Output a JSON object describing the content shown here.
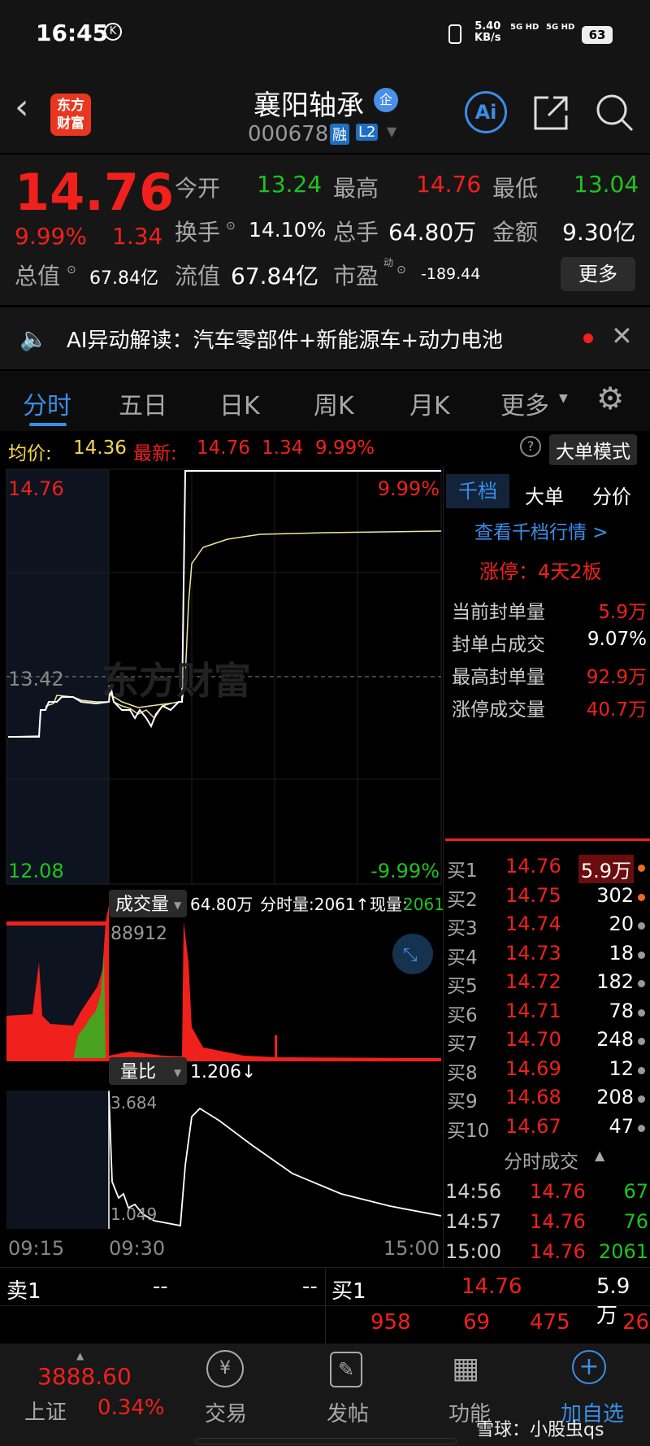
{
  "status_bar": {
    "time": "16:45",
    "speed": "5.40",
    "speed_unit": "KB/s",
    "net1": "5G HD",
    "net2": "5G HD",
    "battery": "63"
  },
  "header": {
    "logo_line1": "东方",
    "logo_line2": "财富",
    "stock_name": "襄阳轴承",
    "badge": "企",
    "code": "000678",
    "tag_margin": "融",
    "tag_level": "L2",
    "ai_label": "Ai"
  },
  "quote": {
    "price": "14.76",
    "change_pct": "9.99%",
    "change": "1.34",
    "open_label": "今开",
    "open": "13.24",
    "high_label": "最高",
    "high": "14.76",
    "low_label": "最低",
    "low": "13.04",
    "turnover_label": "换手",
    "turnover": "14.10%",
    "volume_label": "总手",
    "volume": "64.80万",
    "amount_label": "金额",
    "amount": "9.30亿",
    "mktcap_label": "总值",
    "mktcap": "67.84亿",
    "float_label": "流值",
    "float": "67.84亿",
    "pe_label": "市盈",
    "pe_sup": "动",
    "pe": "-189.44",
    "more": "更多"
  },
  "ai_bar": {
    "text": "AI异动解读：汽车零部件+新能源车+动力电池"
  },
  "tabs": [
    "分时",
    "五日",
    "日K",
    "周K",
    "月K",
    "更多"
  ],
  "info_line": {
    "avg_label": "均价:",
    "avg": "14.36",
    "latest_label": "最新:",
    "latest": "14.76",
    "chg": "1.34",
    "pct": "9.99%",
    "mode_button": "大单模式"
  },
  "chart": {
    "price_high": "14.76",
    "price_mid": "13.42",
    "price_low": "12.08",
    "pct_high": "9.99%",
    "pct_low": "-9.99%",
    "watermark": "东方财富",
    "vol_selector": "成交量",
    "vol_total": "64.80万",
    "vol_minute": "分时量:2061↑",
    "vol_now_label": "现量:",
    "vol_now": "2061",
    "vol_max": "88912",
    "ratio_selector": "量比",
    "ratio": "1.206↓",
    "ratio_max": "3.684",
    "ratio_min": "1.049",
    "time_labels": [
      "09:15",
      "09:30",
      "15:00"
    ]
  },
  "right_panel": {
    "tabs": [
      "千档",
      "大单",
      "分价"
    ],
    "link": "查看千档行情 >",
    "limit_up": "涨停：4天2板",
    "stats": [
      {
        "label": "当前封单量",
        "value": "5.9万"
      },
      {
        "label": "封单占成交",
        "value": "9.07%"
      },
      {
        "label": "最高封单量",
        "value": "92.9万"
      },
      {
        "label": "涨停成交量",
        "value": "40.7万"
      }
    ],
    "bids": [
      {
        "l": "买1",
        "p": "14.76",
        "v": "5.9万"
      },
      {
        "l": "买2",
        "p": "14.75",
        "v": "302"
      },
      {
        "l": "买3",
        "p": "14.74",
        "v": "20"
      },
      {
        "l": "买4",
        "p": "14.73",
        "v": "18"
      },
      {
        "l": "买5",
        "p": "14.72",
        "v": "182"
      },
      {
        "l": "买6",
        "p": "14.71",
        "v": "78"
      },
      {
        "l": "买7",
        "p": "14.70",
        "v": "248"
      },
      {
        "l": "买8",
        "p": "14.69",
        "v": "12"
      },
      {
        "l": "买9",
        "p": "14.68",
        "v": "208"
      },
      {
        "l": "买10",
        "p": "14.67",
        "v": "47"
      }
    ],
    "trades_title": "分时成交",
    "trades": [
      {
        "t": "14:56",
        "p": "14.76",
        "v": "67"
      },
      {
        "t": "14:57",
        "p": "14.76",
        "v": "76"
      },
      {
        "t": "15:00",
        "p": "14.76",
        "v": "2061"
      }
    ]
  },
  "bottom_book": {
    "ask_label": "卖1",
    "ask_price": "--",
    "ask_vol": "--",
    "bid_label": "买1",
    "bid_price": "14.76",
    "bid_vol": "5.9万",
    "queue": [
      "958",
      "69",
      "475",
      "26"
    ]
  },
  "nav": {
    "index_value": "3888.60",
    "index_name": "上证",
    "index_pct": "0.34%",
    "items": [
      "交易",
      "发帖",
      "功能",
      "加自选"
    ]
  },
  "watermark": "雪球：小股虫qs"
}
